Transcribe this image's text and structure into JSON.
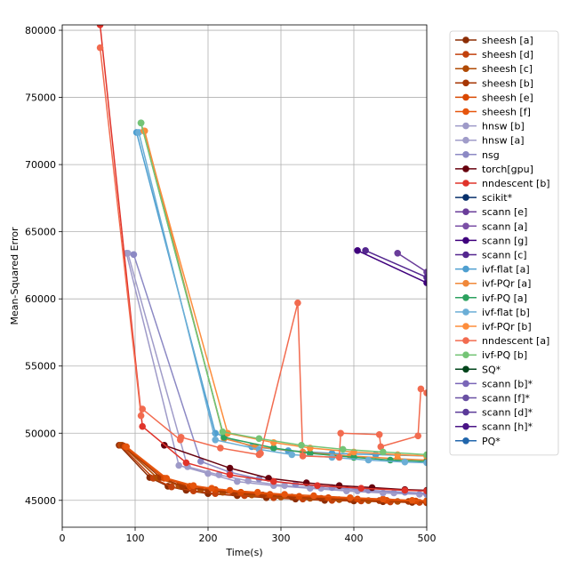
{
  "chart_data": {
    "type": "line",
    "title": "",
    "xlabel": "Time(s)",
    "ylabel": "Mean-Squared Error",
    "xlim": [
      0,
      500
    ],
    "ylim": [
      43000,
      80400
    ],
    "xticks": [
      0,
      100,
      200,
      300,
      400,
      500
    ],
    "yticks": [
      45000,
      50000,
      55000,
      60000,
      65000,
      70000,
      75000,
      80000
    ],
    "grid": true,
    "legend_position": "right",
    "series": [
      {
        "name": "sheesh [a]",
        "color": "#8c2d04",
        "points": [
          [
            78,
            49100
          ],
          [
            120,
            46700
          ],
          [
            145,
            46050
          ],
          [
            170,
            45750
          ],
          [
            200,
            45500
          ],
          [
            240,
            45350
          ],
          [
            280,
            45200
          ],
          [
            320,
            45100
          ],
          [
            360,
            45000
          ],
          [
            400,
            44950
          ],
          [
            440,
            44900
          ],
          [
            480,
            44850
          ],
          [
            500,
            44820
          ]
        ]
      },
      {
        "name": "sheesh [d]",
        "color": "#c2410c",
        "points": [
          [
            80,
            49100
          ],
          [
            125,
            46650
          ],
          [
            150,
            46000
          ],
          [
            180,
            45700
          ],
          [
            210,
            45500
          ],
          [
            250,
            45350
          ],
          [
            290,
            45200
          ],
          [
            330,
            45100
          ],
          [
            370,
            45000
          ],
          [
            410,
            44950
          ],
          [
            450,
            44880
          ],
          [
            490,
            44850
          ],
          [
            500,
            44830
          ]
        ]
      },
      {
        "name": "sheesh [c]",
        "color": "#b04a04",
        "points": [
          [
            82,
            49100
          ],
          [
            130,
            46700
          ],
          [
            160,
            46100
          ],
          [
            190,
            45800
          ],
          [
            220,
            45600
          ],
          [
            260,
            45400
          ],
          [
            300,
            45250
          ],
          [
            340,
            45150
          ],
          [
            380,
            45050
          ],
          [
            420,
            44980
          ],
          [
            460,
            44920
          ],
          [
            500,
            44880
          ]
        ]
      },
      {
        "name": "sheesh [b]",
        "color": "#a63603",
        "points": [
          [
            84,
            49050
          ],
          [
            135,
            46700
          ],
          [
            165,
            46050
          ],
          [
            200,
            45750
          ],
          [
            235,
            45550
          ],
          [
            275,
            45400
          ],
          [
            315,
            45250
          ],
          [
            355,
            45150
          ],
          [
            395,
            45050
          ],
          [
            435,
            44980
          ],
          [
            475,
            44920
          ],
          [
            500,
            44890
          ]
        ]
      },
      {
        "name": "sheesh [e]",
        "color": "#d94801",
        "points": [
          [
            86,
            49000
          ],
          [
            140,
            46650
          ],
          [
            175,
            46050
          ],
          [
            210,
            45800
          ],
          [
            245,
            45600
          ],
          [
            285,
            45450
          ],
          [
            325,
            45300
          ],
          [
            365,
            45200
          ],
          [
            405,
            45100
          ],
          [
            445,
            45000
          ],
          [
            485,
            44950
          ],
          [
            500,
            44930
          ]
        ]
      },
      {
        "name": "sheesh [f]",
        "color": "#e6550d",
        "points": [
          [
            88,
            49000
          ],
          [
            143,
            46650
          ],
          [
            180,
            46100
          ],
          [
            205,
            45900
          ],
          [
            230,
            45750
          ],
          [
            268,
            45600
          ],
          [
            305,
            45450
          ],
          [
            345,
            45350
          ],
          [
            395,
            45200
          ],
          [
            440,
            45100
          ],
          [
            480,
            45000
          ],
          [
            500,
            44980
          ]
        ]
      },
      {
        "name": "hnsw [b]",
        "color": "#9e9ac8",
        "points": [
          [
            88,
            63400
          ],
          [
            160,
            47600
          ],
          [
            200,
            47000
          ],
          [
            240,
            46400
          ],
          [
            290,
            46100
          ],
          [
            340,
            45900
          ],
          [
            390,
            45700
          ],
          [
            440,
            45550
          ],
          [
            490,
            45450
          ],
          [
            500,
            45430
          ]
        ]
      },
      {
        "name": "hnsw [a]",
        "color": "#a09cc9",
        "points": [
          [
            90,
            63400
          ],
          [
            172,
            47500
          ],
          [
            215,
            46900
          ],
          [
            255,
            46450
          ],
          [
            305,
            46100
          ],
          [
            355,
            45900
          ],
          [
            405,
            45700
          ],
          [
            455,
            45550
          ],
          [
            500,
            45450
          ]
        ]
      },
      {
        "name": "nsg",
        "color": "#8c89c4",
        "points": [
          [
            98,
            63300
          ],
          [
            190,
            47900
          ],
          [
            230,
            47100
          ],
          [
            270,
            46600
          ],
          [
            320,
            46200
          ],
          [
            370,
            45950
          ],
          [
            420,
            45750
          ],
          [
            470,
            45600
          ],
          [
            500,
            45520
          ]
        ]
      },
      {
        "name": "torch[gpu]",
        "color": "#67000d",
        "points": [
          [
            140,
            49100
          ],
          [
            230,
            47400
          ],
          [
            283,
            46650
          ],
          [
            335,
            46300
          ],
          [
            380,
            46100
          ],
          [
            425,
            45950
          ],
          [
            470,
            45800
          ],
          [
            500,
            45750
          ]
        ]
      },
      {
        "name": "nndescent [b]",
        "color": "#e0332a",
        "points": [
          [
            52,
            80400
          ],
          [
            110,
            50500
          ],
          [
            170,
            47800
          ],
          [
            230,
            46900
          ],
          [
            290,
            46400
          ],
          [
            350,
            46100
          ],
          [
            410,
            45900
          ],
          [
            470,
            45750
          ],
          [
            500,
            45700
          ]
        ]
      },
      {
        "name": "scikit*",
        "color": "#08306b",
        "points": []
      },
      {
        "name": "scann [e]",
        "color": "#6a3d9a",
        "points": [
          [
            460,
            63400
          ],
          [
            500,
            62000
          ]
        ]
      },
      {
        "name": "scann [a]",
        "color": "#7b4fa6",
        "points": []
      },
      {
        "name": "scann [g]",
        "color": "#3f007d",
        "points": [
          [
            405,
            63600
          ],
          [
            500,
            61200
          ]
        ]
      },
      {
        "name": "scann [c]",
        "color": "#54278f",
        "points": [
          [
            416,
            63600
          ],
          [
            500,
            61600
          ]
        ]
      },
      {
        "name": "ivf-flat [a]",
        "color": "#4f9fd0",
        "points": [
          [
            102,
            72400
          ],
          [
            210,
            50000
          ],
          [
            260,
            49000
          ],
          [
            310,
            48700
          ],
          [
            370,
            48500
          ],
          [
            430,
            48400
          ],
          [
            500,
            48300
          ]
        ]
      },
      {
        "name": "ivf-PQr [a]",
        "color": "#f0883a",
        "points": [
          [
            113,
            72500
          ],
          [
            222,
            49600
          ],
          [
            265,
            49000
          ],
          [
            330,
            48600
          ],
          [
            395,
            48300
          ],
          [
            460,
            48100
          ],
          [
            500,
            48000
          ]
        ]
      },
      {
        "name": "ivf-PQ [a]",
        "color": "#2ca25f",
        "points": [
          [
            108,
            73100
          ],
          [
            222,
            49700
          ],
          [
            290,
            48900
          ],
          [
            340,
            48500
          ],
          [
            400,
            48200
          ],
          [
            450,
            48000
          ],
          [
            500,
            47900
          ]
        ]
      },
      {
        "name": "ivf-flat [b]",
        "color": "#6baed6",
        "points": [
          [
            105,
            72400
          ],
          [
            210,
            49500
          ],
          [
            270,
            48800
          ],
          [
            315,
            48400
          ],
          [
            370,
            48200
          ],
          [
            420,
            48000
          ],
          [
            470,
            47850
          ],
          [
            500,
            47800
          ]
        ]
      },
      {
        "name": "ivf-PQr [b]",
        "color": "#fd8d3c",
        "points": [
          [
            112,
            72500
          ],
          [
            227,
            50000
          ],
          [
            290,
            49300
          ],
          [
            340,
            48900
          ],
          [
            400,
            48600
          ],
          [
            460,
            48400
          ],
          [
            500,
            48300
          ]
        ]
      },
      {
        "name": "nndescent [a]",
        "color": "#f26b4f",
        "points": [
          [
            52,
            78700
          ],
          [
            108,
            51300
          ],
          [
            110,
            51800
          ],
          [
            162,
            49500
          ],
          [
            163,
            49700
          ],
          [
            217,
            48900
          ],
          [
            270,
            48400
          ],
          [
            272,
            48500
          ],
          [
            323,
            59700
          ],
          [
            330,
            48300
          ],
          [
            380,
            48200
          ],
          [
            382,
            50000
          ],
          [
            435,
            49900
          ],
          [
            437,
            49000
          ],
          [
            488,
            49800
          ],
          [
            492,
            53300
          ],
          [
            500,
            53000
          ]
        ]
      },
      {
        "name": "ivf-PQ [b]",
        "color": "#74c476",
        "points": [
          [
            108,
            73100
          ],
          [
            220,
            50100
          ],
          [
            270,
            49600
          ],
          [
            328,
            49100
          ],
          [
            385,
            48800
          ],
          [
            440,
            48600
          ],
          [
            500,
            48400
          ]
        ]
      },
      {
        "name": "SQ*",
        "color": "#00441b",
        "points": []
      },
      {
        "name": "scann [b]*",
        "color": "#7a66b8",
        "points": []
      },
      {
        "name": "scann [f]*",
        "color": "#6a51a3",
        "points": []
      },
      {
        "name": "scann [d]*",
        "color": "#5b3a99",
        "points": []
      },
      {
        "name": "scann [h]*",
        "color": "#4a1486",
        "points": []
      },
      {
        "name": "PQ*",
        "color": "#2166ac",
        "points": []
      }
    ]
  }
}
